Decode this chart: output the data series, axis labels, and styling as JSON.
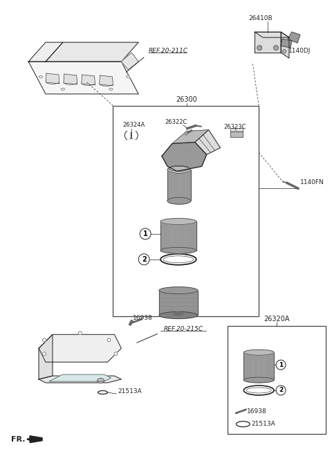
{
  "bg_color": "#ffffff",
  "line_color": "#222222",
  "gray_dark": "#666666",
  "gray_mid": "#999999",
  "gray_light": "#bbbbbb",
  "gray_lighter": "#dddddd",
  "gray_fill": "#f2f2f2",
  "labels": {
    "ref_211c": "REF.20-211C",
    "ref_215c": "REF.20-215C",
    "part_26300": "26300",
    "part_26324A": "26324A",
    "part_26322C": "26322C",
    "part_26323C": "26323C",
    "part_26410B": "26410B",
    "part_1140DJ": "1140DJ",
    "part_1140FN": "1140FN",
    "part_16938": "16938",
    "part_21513A": "21513A",
    "part_26320A": "26320A",
    "fr_label": "FR."
  },
  "fig_width": 4.8,
  "fig_height": 6.56,
  "dpi": 100
}
